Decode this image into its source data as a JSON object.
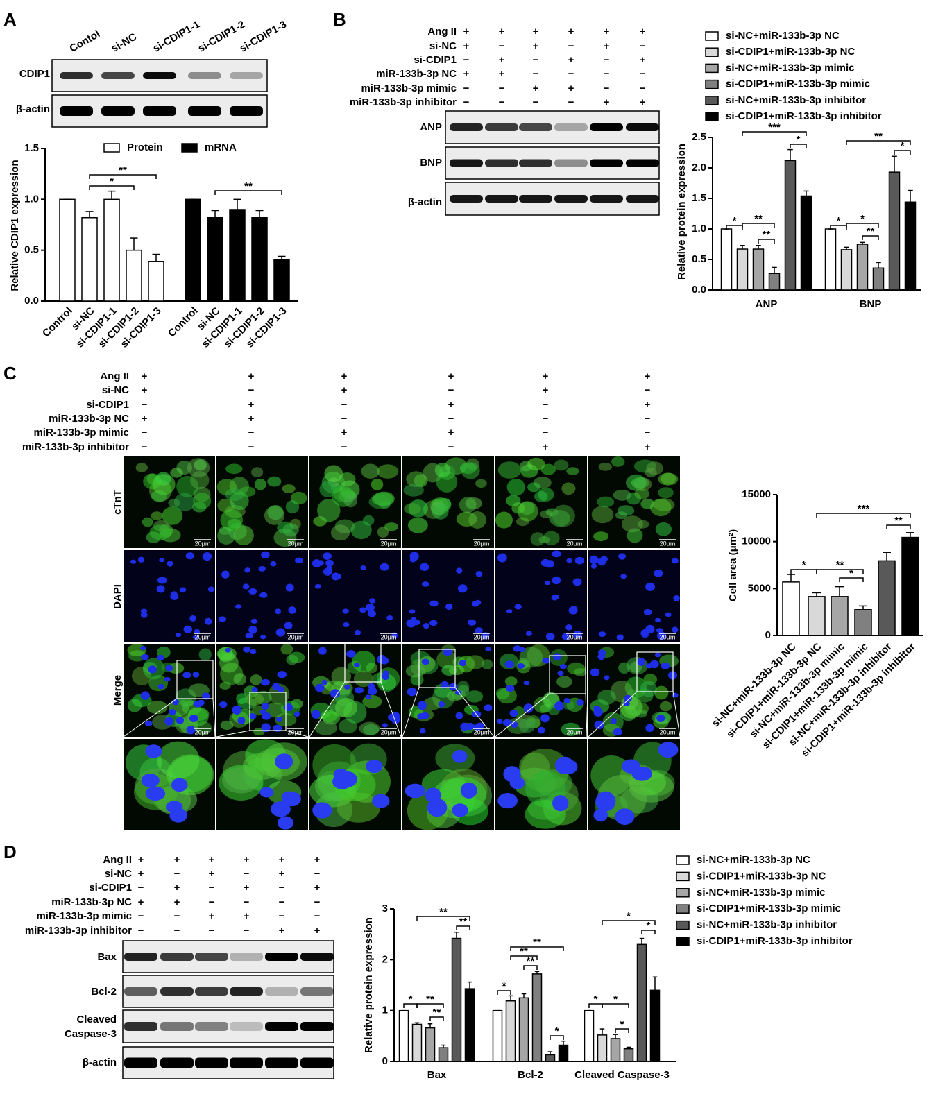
{
  "panels": [
    {
      "label": "A",
      "lanes": [
        "Contol",
        "si-NC",
        "si-CDIP1-1",
        "si-CDIP1-2",
        "si-CDIP1-3"
      ],
      "blots": [
        "CDIP1",
        "β-actin"
      ]
    },
    {
      "label": "B",
      "conditions": [
        {
          "label": "Ang II",
          "signs": [
            "+",
            "+",
            "+",
            "+",
            "+",
            "+"
          ]
        },
        {
          "label": "si-NC",
          "signs": [
            "+",
            "−",
            "+",
            "−",
            "+",
            "−"
          ]
        },
        {
          "label": "si-CDIP1",
          "signs": [
            "−",
            "+",
            "−",
            "+",
            "−",
            "+"
          ]
        },
        {
          "label": "miR-133b-3p NC",
          "signs": [
            "+",
            "+",
            "−",
            "−",
            "−",
            "−"
          ]
        },
        {
          "label": "miR-133b-3p mimic",
          "signs": [
            "−",
            "−",
            "+",
            "+",
            "−",
            "−"
          ]
        },
        {
          "label": "miR-133b-3p inhibitor",
          "signs": [
            "−",
            "−",
            "−",
            "−",
            "+",
            "+"
          ]
        }
      ],
      "blots": [
        "ANP",
        "BNP",
        "β-actin"
      ]
    },
    {
      "label": "C",
      "conditions": [
        {
          "label": "Ang II",
          "signs": [
            "+",
            "+",
            "+",
            "+",
            "+",
            "+"
          ]
        },
        {
          "label": "si-NC",
          "signs": [
            "+",
            "−",
            "+",
            "−",
            "+",
            "−"
          ]
        },
        {
          "label": "si-CDIP1",
          "signs": [
            "−",
            "+",
            "−",
            "+",
            "−",
            "+"
          ]
        },
        {
          "label": "miR-133b-3p NC",
          "signs": [
            "+",
            "+",
            "−",
            "−",
            "−",
            "−"
          ]
        },
        {
          "label": "miR-133b-3p mimic",
          "signs": [
            "−",
            "−",
            "+",
            "+",
            "−",
            "−"
          ]
        },
        {
          "label": "miR-133b-3p inhibitor",
          "signs": [
            "−",
            "−",
            "−",
            "−",
            "+",
            "+"
          ]
        }
      ],
      "stains": [
        "cTnT",
        "DAPI",
        "Merge"
      ],
      "scale_bar": "20μm"
    },
    {
      "label": "D",
      "conditions": [
        {
          "label": "Ang II",
          "signs": [
            "+",
            "+",
            "+",
            "+",
            "+",
            "+"
          ]
        },
        {
          "label": "si-NC",
          "signs": [
            "+",
            "−",
            "+",
            "−",
            "+",
            "−"
          ]
        },
        {
          "label": "si-CDIP1",
          "signs": [
            "−",
            "+",
            "−",
            "+",
            "−",
            "+"
          ]
        },
        {
          "label": "miR-133b-3p NC",
          "signs": [
            "+",
            "+",
            "−",
            "−",
            "−",
            "−"
          ]
        },
        {
          "label": "miR-133b-3p mimic",
          "signs": [
            "−",
            "−",
            "+",
            "+",
            "−",
            "−"
          ]
        },
        {
          "label": "miR-133b-3p inhibitor",
          "signs": [
            "−",
            "−",
            "−",
            "−",
            "+",
            "+"
          ]
        }
      ],
      "blots": [
        "Bax",
        "Bcl-2",
        [
          "Cleaved",
          "Caspase-3"
        ],
        "β-actin"
      ]
    }
  ],
  "chart_data": [
    {
      "type": "bar",
      "y_label": "Relative CDIP1 expression",
      "categories": [
        "Control",
        "si-NC",
        "si-CDIP1-1",
        "si-CDIP1-2",
        "si-CDIP1-3"
      ],
      "series": [
        {
          "name": "Protein",
          "color": "#ffffff",
          "values": [
            1.0,
            0.82,
            1.0,
            0.5,
            0.39
          ],
          "errors": [
            0,
            0.06,
            0.08,
            0.12,
            0.07
          ]
        },
        {
          "name": "mRNA",
          "color": "#000000",
          "values": [
            1.0,
            0.82,
            0.9,
            0.82,
            0.41
          ],
          "errors": [
            0,
            0.07,
            0.1,
            0.07,
            0.03
          ]
        }
      ],
      "ylim": [
        0,
        1.5
      ],
      "yticks": [
        {
          "value": 0,
          "label": "0.0"
        },
        0.5,
        {
          "value": 1,
          "label": "1.0"
        },
        1.5
      ],
      "annotations": [
        "*",
        "**",
        "**"
      ]
    },
    {
      "type": "bar",
      "y_label": "Relative protein expression",
      "categories": [
        "ANP",
        "BNP"
      ],
      "series": [
        {
          "name": "si-NC+miR-133b-3p NC",
          "color": "#ffffff",
          "values": [
            1.0,
            1.0
          ],
          "errors": [
            0,
            0
          ]
        },
        {
          "name": "si-CDIP1+miR-133b-3p NC",
          "color": "#d9d9d9",
          "values": [
            0.67,
            0.66
          ],
          "errors": [
            0.06,
            0.04
          ]
        },
        {
          "name": "si-NC+miR-133b-3p mimic",
          "color": "#a6a6a6",
          "values": [
            0.67,
            0.75
          ],
          "errors": [
            0.06,
            0.03
          ]
        },
        {
          "name": "si-CDIP1+miR-133b-3p mimic",
          "color": "#808080",
          "values": [
            0.27,
            0.36
          ],
          "errors": [
            0.1,
            0.09
          ]
        },
        {
          "name": "si-NC+miR-133b-3p inhibitor",
          "color": "#595959",
          "values": [
            2.12,
            1.93
          ],
          "errors": [
            0.18,
            0.26
          ]
        },
        {
          "name": "si-CDIP1+miR-133b-3p inhibitor",
          "color": "#000000",
          "values": [
            1.54,
            1.44
          ],
          "errors": [
            0.08,
            0.19
          ]
        }
      ],
      "ylim": [
        0,
        2.5
      ],
      "yticks": [
        {
          "value": 0,
          "label": "0.0"
        },
        0.5,
        {
          "value": 1,
          "label": "1.0"
        },
        1.5,
        {
          "value": 2,
          "label": "2.0"
        },
        2.5
      ],
      "annotations": [
        "*",
        "**",
        "**",
        "***",
        "*",
        "*",
        "*",
        "**",
        "**",
        "*"
      ]
    },
    {
      "type": "bar",
      "y_label": "Cell area (μm²)",
      "categories": [
        "si-NC+miR-133b-3p NC",
        "si-CDIP1+miR-133b-3p NC",
        "si-NC+miR-133b-3p mimic",
        "si-CDIP1+miR-133b-3p mimic",
        "si-NC+miR-133b-3p inhibitor",
        "si-CDIP1+miR-133b-3p inhibitor"
      ],
      "values": [
        5700,
        4150,
        4150,
        2750,
        7950,
        10450
      ],
      "errors": [
        800,
        400,
        1050,
        400,
        900,
        500
      ],
      "colors": [
        "#ffffff",
        "#d9d9d9",
        "#a6a6a6",
        "#808080",
        "#595959",
        "#000000"
      ],
      "ylim": [
        0,
        15000
      ],
      "yticks": [
        0,
        5000,
        10000,
        15000
      ],
      "annotations": [
        "*",
        "**",
        "*",
        "***",
        "**"
      ]
    },
    {
      "type": "bar",
      "y_label": "Relative protein expression",
      "categories": [
        "Bax",
        "Bcl-2",
        "Cleaved Caspase-3"
      ],
      "series": [
        {
          "name": "si-NC+miR-133b-3p NC",
          "color": "#ffffff",
          "values": [
            1.0,
            1.0,
            1.0
          ],
          "errors": [
            0,
            0,
            0
          ]
        },
        {
          "name": "si-CDIP1+miR-133b-3p NC",
          "color": "#d9d9d9",
          "values": [
            0.73,
            1.19,
            0.52
          ],
          "errors": [
            0.03,
            0.1,
            0.12
          ]
        },
        {
          "name": "si-NC+miR-133b-3p mimic",
          "color": "#a6a6a6",
          "values": [
            0.66,
            1.25,
            0.45
          ],
          "errors": [
            0.08,
            0.08,
            0.08
          ]
        },
        {
          "name": "si-CDIP1+miR-133b-3p mimic",
          "color": "#808080",
          "values": [
            0.27,
            1.72,
            0.25
          ],
          "errors": [
            0.05,
            0.05,
            0.03
          ]
        },
        {
          "name": "si-NC+miR-133b-3p inhibitor",
          "color": "#595959",
          "values": [
            2.42,
            0.13,
            2.3
          ],
          "errors": [
            0.12,
            0.06,
            0.12
          ]
        },
        {
          "name": "si-CDIP1+miR-133b-3p inhibitor",
          "color": "#000000",
          "values": [
            1.43,
            0.32,
            1.4
          ],
          "errors": [
            0.13,
            0.08,
            0.26
          ]
        }
      ],
      "ylim": [
        0,
        3
      ],
      "yticks": [
        0,
        1,
        2,
        3
      ],
      "annotations": [
        "*",
        "**",
        "**",
        "**",
        "**",
        "*",
        "**",
        "**",
        "**",
        "*",
        "*",
        "*",
        "*",
        "*",
        "*"
      ]
    }
  ]
}
